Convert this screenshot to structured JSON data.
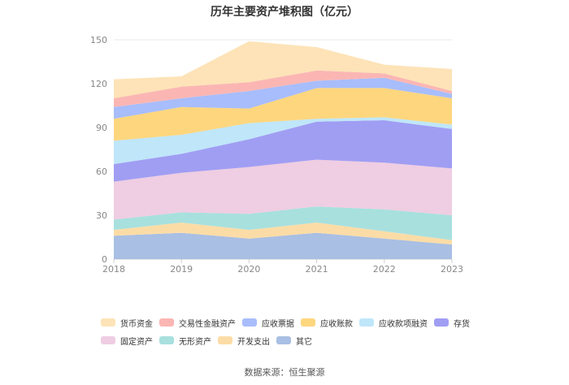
{
  "chart_data": {
    "type": "area",
    "title": "历年主要资产堆积图（亿元）",
    "xlabel": "",
    "ylabel": "",
    "categories": [
      "2018",
      "2019",
      "2020",
      "2021",
      "2022",
      "2023"
    ],
    "ylim": [
      0,
      150
    ],
    "yticks": [
      0,
      30,
      60,
      90,
      120,
      150
    ],
    "stacked": true,
    "series": [
      {
        "name": "其它",
        "color": "#a9bfe3",
        "values": [
          16,
          18,
          14,
          18,
          14,
          10
        ]
      },
      {
        "name": "开发支出",
        "color": "#fcdca6",
        "values": [
          4,
          7,
          6,
          7,
          5,
          3
        ]
      },
      {
        "name": "无形资产",
        "color": "#a8e0de",
        "values": [
          7,
          7,
          11,
          11,
          15,
          17
        ]
      },
      {
        "name": "固定资产",
        "color": "#efcde2",
        "values": [
          26,
          27,
          32,
          32,
          32,
          32
        ]
      },
      {
        "name": "存货",
        "color": "#a09ef3",
        "values": [
          12,
          13,
          19,
          26,
          29,
          27
        ]
      },
      {
        "name": "应收款项融资",
        "color": "#bfe6f9",
        "values": [
          16,
          13,
          11,
          2,
          2,
          3
        ]
      },
      {
        "name": "应收账款",
        "color": "#fdd67e",
        "values": [
          15,
          19,
          10,
          21,
          20,
          18
        ]
      },
      {
        "name": "应收票据",
        "color": "#a8bdfb",
        "values": [
          8,
          6,
          12,
          5,
          7,
          3
        ]
      },
      {
        "name": "交易性金融资产",
        "color": "#fbb6b3",
        "values": [
          6,
          8,
          6,
          7,
          3,
          2
        ]
      },
      {
        "name": "货币资金",
        "color": "#fde3b7",
        "values": [
          13,
          7,
          28,
          16,
          6,
          15
        ]
      }
    ],
    "legend": {
      "position": "bottom",
      "rows": [
        [
          "货币资金",
          "交易性金融资产",
          "应收票据",
          "应收账款",
          "应收款项融资",
          "存货"
        ],
        [
          "固定资产",
          "无形资产",
          "开发支出",
          "其它"
        ]
      ]
    }
  },
  "source": "数据来源：恒生聚源"
}
